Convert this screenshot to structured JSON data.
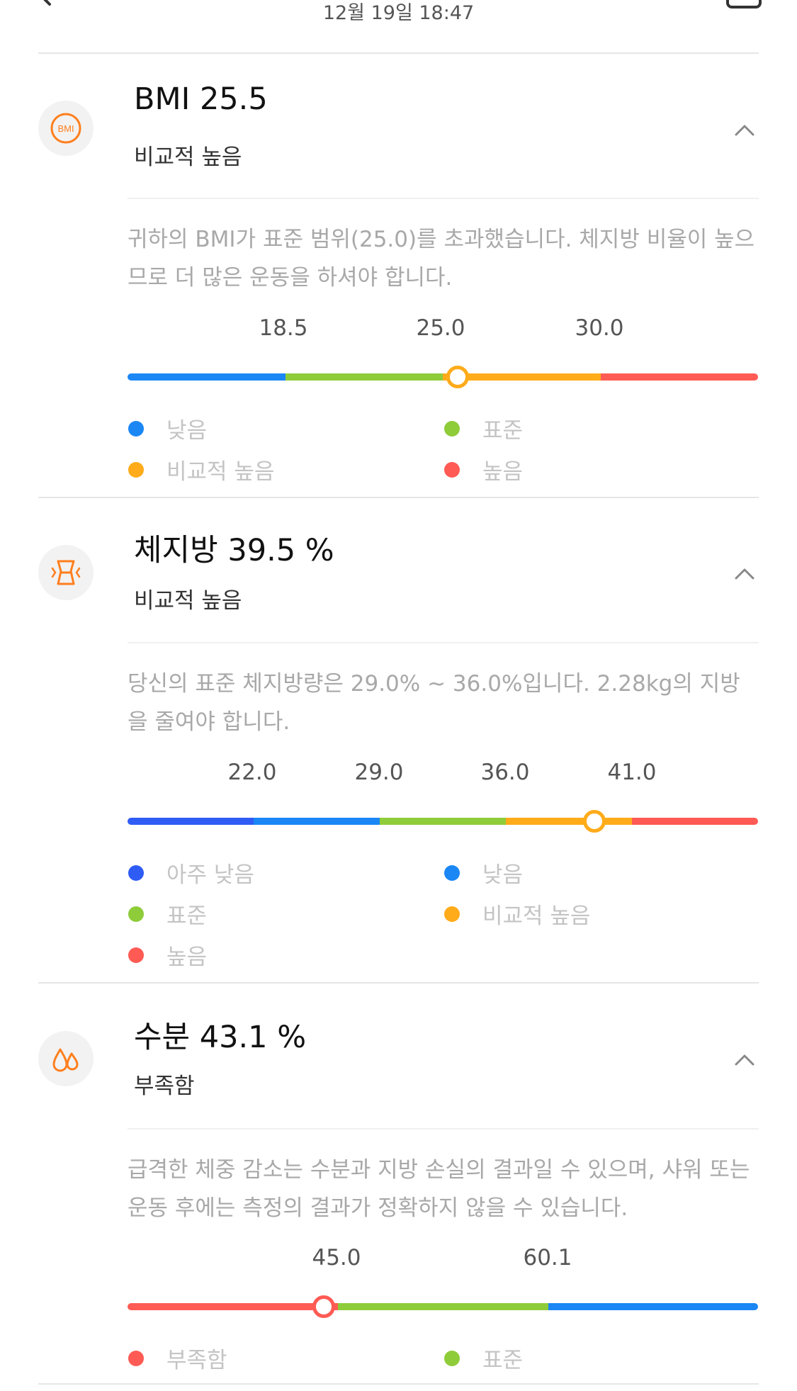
{
  "header": {
    "datetime": "12월 19일 18:47"
  },
  "colors": {
    "accent": "#ff7f1e",
    "very_low": "#2f5cf5",
    "low": "#1a87f5",
    "standard": "#8fcc3a",
    "slightly_high": "#ffab1a",
    "high": "#ff5b54"
  },
  "sections": [
    {
      "icon": "bmi-icon",
      "title": "BMI 25.5",
      "status": "비교적 높음",
      "description": "귀하의 BMI가 표준 범위(25.0)를 초과했습니다. 체지방 비율이 높으므로 더 많은 운동을 하셔야 합니다.",
      "ticks": [
        "18.5",
        "25.0",
        "30.0"
      ],
      "legend": [
        "낮음",
        "표준",
        "비교적 높음",
        "높음"
      ],
      "value": 25.5
    },
    {
      "icon": "body-fat-icon",
      "title": "체지방 39.5 %",
      "status": "비교적 높음",
      "description": "당신의 표준 체지방량은 29.0% ~ 36.0%입니다. 2.28kg의 지방을 줄여야 합니다.",
      "ticks": [
        "22.0",
        "29.0",
        "36.0",
        "41.0"
      ],
      "legend": [
        "아주 낮음",
        "낮음",
        "표준",
        "비교적 높음",
        "높음"
      ],
      "value": 39.5
    },
    {
      "icon": "water-drop-icon",
      "title": "수분 43.1 %",
      "status": "부족함",
      "description": "급격한 체중 감소는 수분과 지방 손실의 결과일 수 있으며, 샤워 또는 운동 후에는 측정의 결과가 정확하지 않을 수 있습니다.",
      "ticks": [
        "45.0",
        "60.1"
      ],
      "legend": [
        "부족함",
        "표준"
      ],
      "value": 43.1
    }
  ]
}
